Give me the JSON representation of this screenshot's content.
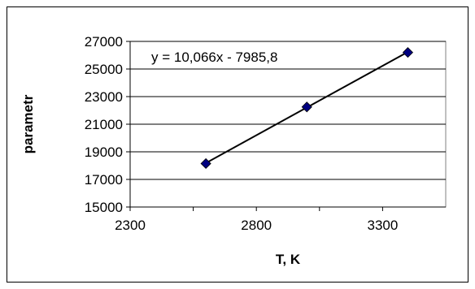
{
  "chart_data": {
    "type": "scatter",
    "xlabel": "T, K",
    "ylabel": "parametr",
    "xlim": [
      2300,
      3550
    ],
    "ylim": [
      15000,
      27000
    ],
    "x_ticks": [
      "2300",
      "2800",
      "3300"
    ],
    "x_tick_values": [
      2300,
      2800,
      3300
    ],
    "y_ticks": [
      "15000",
      "17000",
      "19000",
      "21000",
      "23000",
      "25000",
      "27000"
    ],
    "y_tick_values": [
      15000,
      17000,
      19000,
      21000,
      23000,
      25000,
      27000
    ],
    "grid": "horizontal",
    "legend": "none",
    "series": [
      {
        "x": [
          2600,
          3000,
          3400
        ],
        "y": [
          18150,
          22250,
          26200
        ],
        "marker": "diamond",
        "color": "#000080"
      }
    ],
    "trendline": {
      "slope": 10.066,
      "intercept": -7985.8,
      "x_range": [
        2600,
        3400
      ],
      "equation_label": "y = 10,066x - 7985,8",
      "color": "#000000"
    }
  }
}
